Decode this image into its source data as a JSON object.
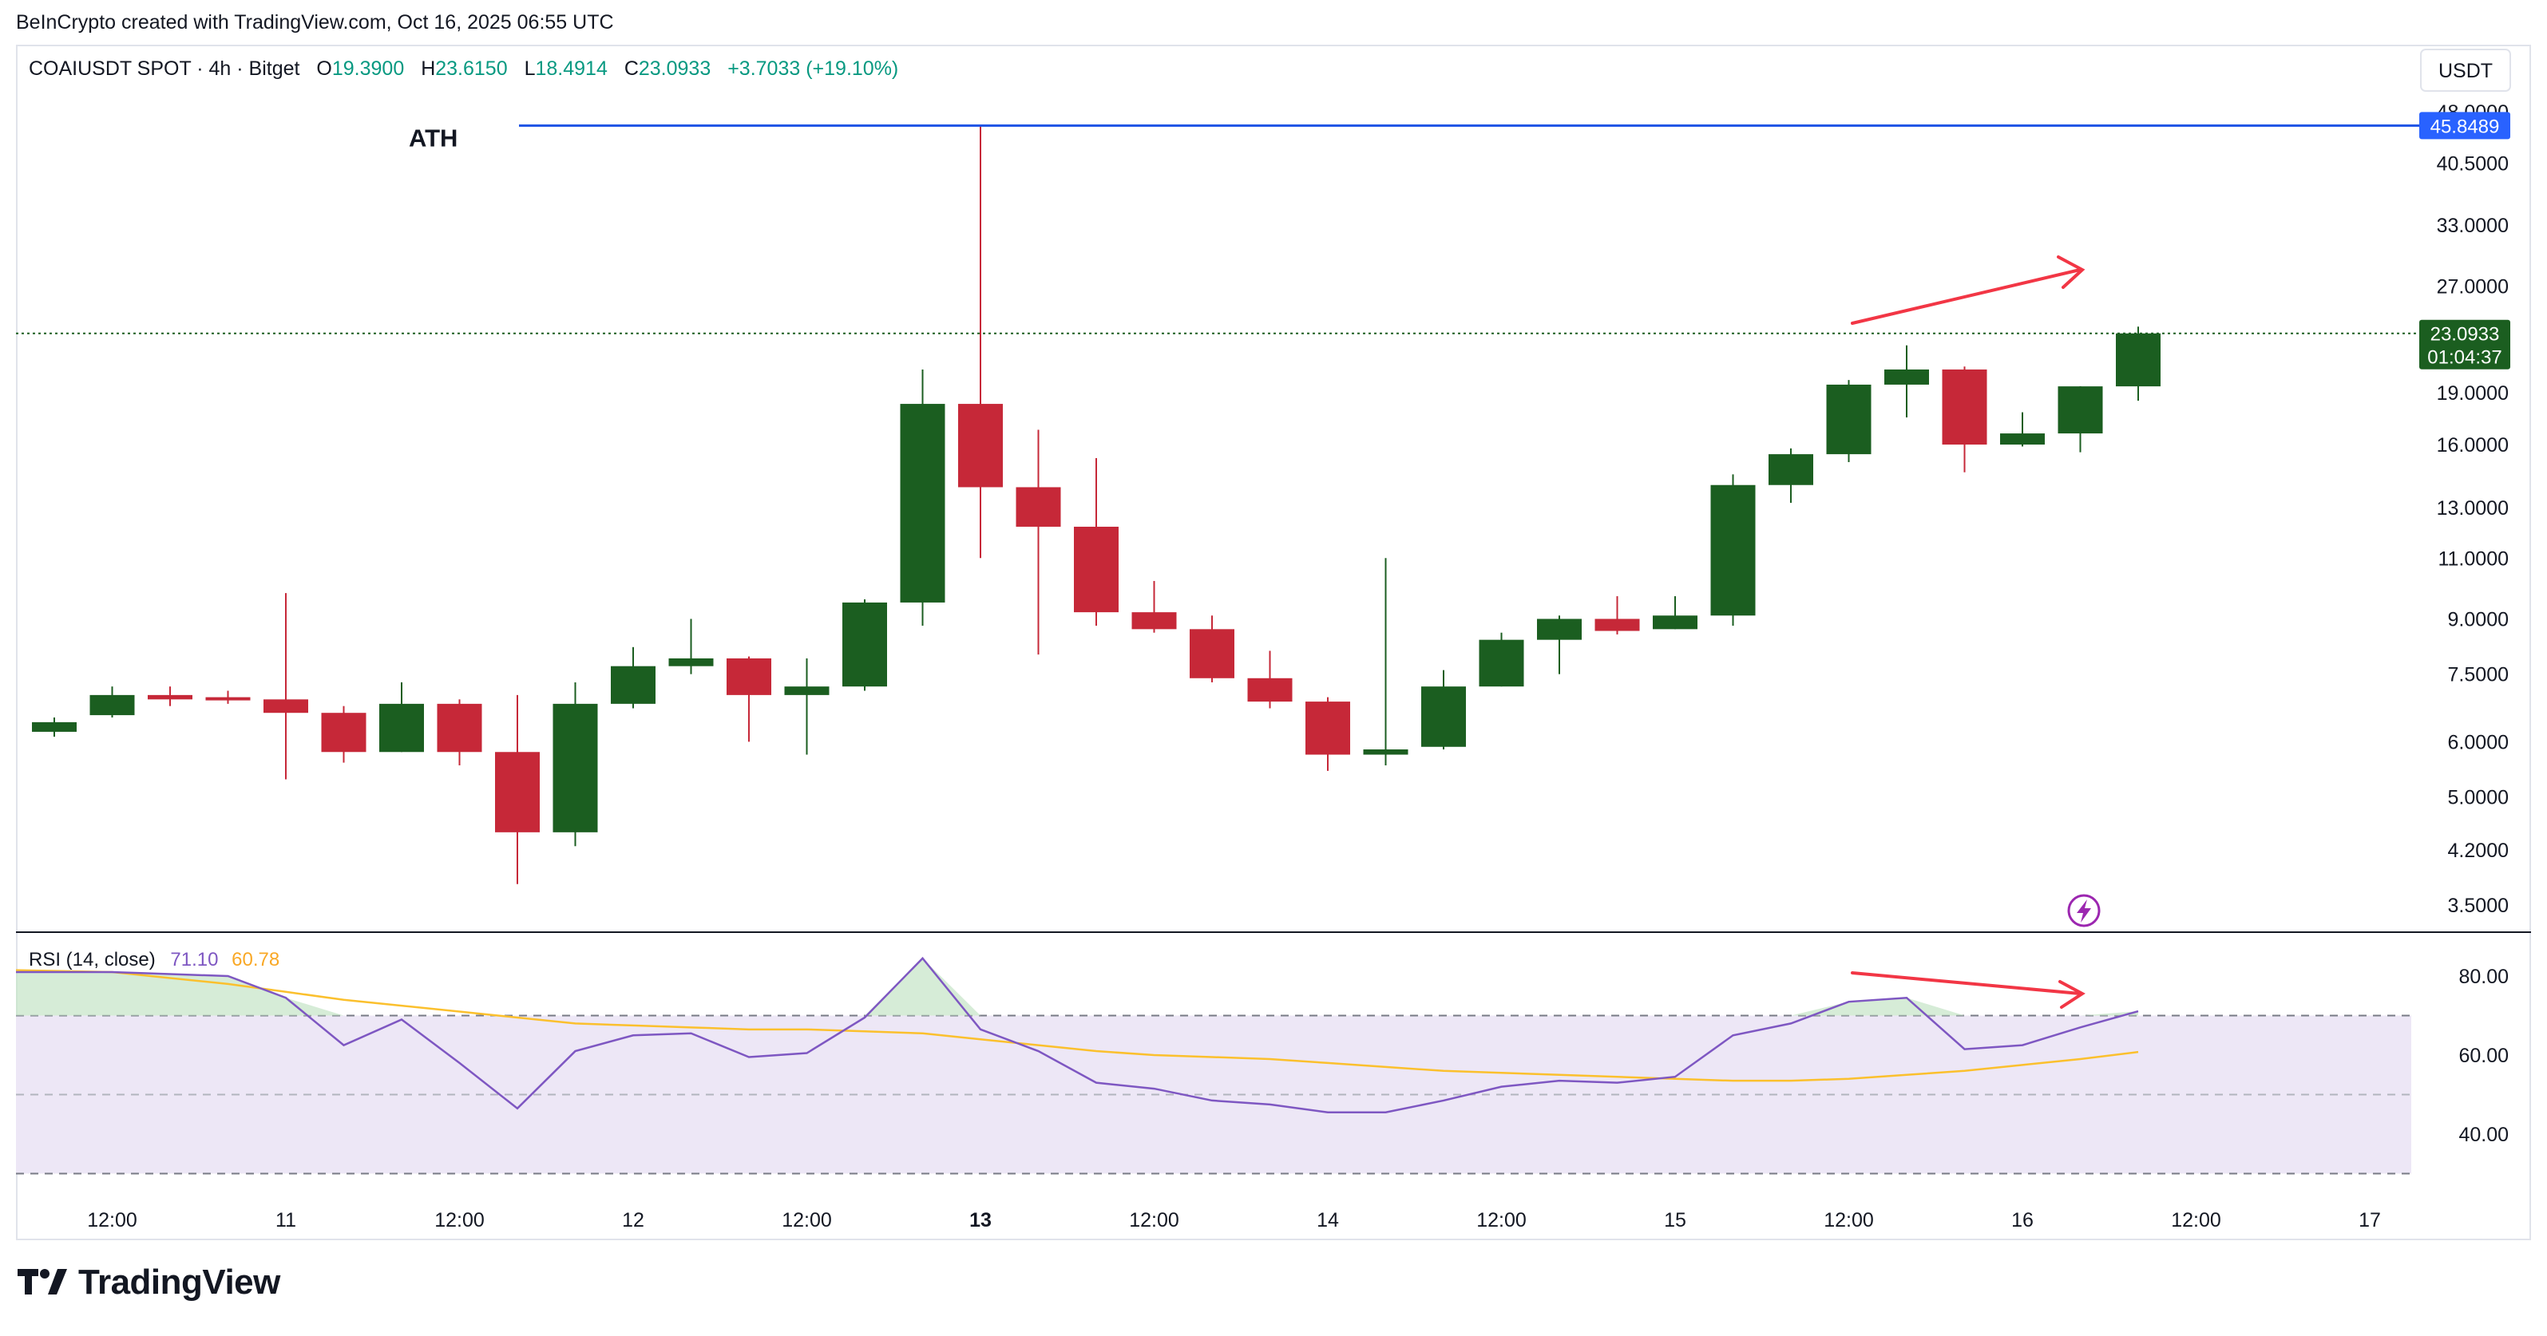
{
  "credit": "BeInCrypto created with TradingView.com, Oct 16, 2025 06:55 UTC",
  "header": {
    "symbol": "COAIUSDT SPOT · 4h · Bitget",
    "o_label": "O",
    "o_value": "19.3900",
    "h_label": "H",
    "h_value": "23.6150",
    "l_label": "L",
    "l_value": "18.4914",
    "c_label": "C",
    "c_value": "23.0933",
    "change": "+3.7033 (+19.10%)"
  },
  "currency_button": "USDT",
  "ath_label": "ATH",
  "ath_price": "45.8489",
  "last_price": "23.0933",
  "countdown": "01:04:37",
  "rsi_header": {
    "name": "RSI (14, close)",
    "rsi_value": "71.10",
    "ma_value": "60.78"
  },
  "logo_text": "TradingView",
  "colors": {
    "up": "#1b5e20",
    "down": "#c62838",
    "rsi": "#7e57c2",
    "rsi_ma": "#fbc02d",
    "ath_line": "#2962ff",
    "arrow": "#f23645",
    "band_fill": "#ede7f6"
  },
  "chart_data": [
    {
      "type": "candlestick",
      "title": "COAIUSDT SPOT · 4h · Bitget",
      "y_scale": "log",
      "y_ticks": [
        3.5,
        4.2,
        5.0,
        6.0,
        7.5,
        9.0,
        11.0,
        13.0,
        16.0,
        19.0,
        27.0,
        33.0,
        40.5,
        48.0
      ],
      "y_tick_labels": [
        "3.5000",
        "4.2000",
        "5.0000",
        "6.0000",
        "7.5000",
        "9.0000",
        "11.0000",
        "13.0000",
        "16.0000",
        "19.0000",
        "27.0000",
        "33.0000",
        "40.5000",
        "48.0000"
      ],
      "x_tick_labels": [
        "12:00",
        "11",
        "12:00",
        "12",
        "12:00",
        "13",
        "12:00",
        "14",
        "12:00",
        "15",
        "12:00",
        "16",
        "12:00",
        "17"
      ],
      "ath": 45.8489,
      "last_price": 23.0933,
      "candles": [
        {
          "o": 6.2,
          "h": 6.5,
          "l": 6.1,
          "c": 6.4
        },
        {
          "o": 6.55,
          "h": 7.2,
          "l": 6.5,
          "c": 7.0
        },
        {
          "o": 7.0,
          "h": 7.2,
          "l": 6.75,
          "c": 6.9
        },
        {
          "o": 6.95,
          "h": 7.1,
          "l": 6.8,
          "c": 6.9
        },
        {
          "o": 6.9,
          "h": 9.8,
          "l": 5.3,
          "c": 6.6
        },
        {
          "o": 6.6,
          "h": 6.75,
          "l": 5.6,
          "c": 5.8
        },
        {
          "o": 5.8,
          "h": 7.3,
          "l": 5.8,
          "c": 6.8
        },
        {
          "o": 6.8,
          "h": 6.9,
          "l": 5.55,
          "c": 5.8
        },
        {
          "o": 5.8,
          "h": 7.0,
          "l": 3.75,
          "c": 4.45
        },
        {
          "o": 4.45,
          "h": 7.3,
          "l": 4.25,
          "c": 6.8
        },
        {
          "o": 6.8,
          "h": 8.2,
          "l": 6.7,
          "c": 7.7
        },
        {
          "o": 7.7,
          "h": 9.0,
          "l": 7.5,
          "c": 7.9
        },
        {
          "o": 7.9,
          "h": 7.95,
          "l": 6.0,
          "c": 7.0
        },
        {
          "o": 7.0,
          "h": 7.9,
          "l": 5.75,
          "c": 7.2
        },
        {
          "o": 7.2,
          "h": 9.6,
          "l": 7.1,
          "c": 9.5
        },
        {
          "o": 9.5,
          "h": 20.5,
          "l": 8.8,
          "c": 18.3
        },
        {
          "o": 18.3,
          "h": 45.85,
          "l": 11.0,
          "c": 13.9
        },
        {
          "o": 13.9,
          "h": 16.8,
          "l": 8.0,
          "c": 12.2
        },
        {
          "o": 12.2,
          "h": 15.3,
          "l": 8.8,
          "c": 9.2
        },
        {
          "o": 9.2,
          "h": 10.2,
          "l": 8.6,
          "c": 8.7
        },
        {
          "o": 8.7,
          "h": 9.1,
          "l": 7.3,
          "c": 7.4
        },
        {
          "o": 7.4,
          "h": 8.1,
          "l": 6.7,
          "c": 6.85
        },
        {
          "o": 6.85,
          "h": 6.95,
          "l": 5.45,
          "c": 5.75
        },
        {
          "o": 5.75,
          "h": 11.0,
          "l": 5.55,
          "c": 5.85
        },
        {
          "o": 5.9,
          "h": 7.6,
          "l": 5.85,
          "c": 7.2
        },
        {
          "o": 7.2,
          "h": 8.6,
          "l": 7.2,
          "c": 8.4
        },
        {
          "o": 8.4,
          "h": 9.1,
          "l": 7.5,
          "c": 9.0
        },
        {
          "o": 9.0,
          "h": 9.7,
          "l": 8.55,
          "c": 8.65
        },
        {
          "o": 8.7,
          "h": 9.7,
          "l": 8.7,
          "c": 9.1
        },
        {
          "o": 9.1,
          "h": 14.5,
          "l": 8.8,
          "c": 14.0
        },
        {
          "o": 14.0,
          "h": 15.8,
          "l": 13.2,
          "c": 15.5
        },
        {
          "o": 15.5,
          "h": 19.8,
          "l": 15.1,
          "c": 19.5
        },
        {
          "o": 19.5,
          "h": 22.2,
          "l": 17.5,
          "c": 20.5
        },
        {
          "o": 20.5,
          "h": 20.7,
          "l": 14.6,
          "c": 16.0
        },
        {
          "o": 16.0,
          "h": 17.8,
          "l": 15.9,
          "c": 16.6
        },
        {
          "o": 16.6,
          "h": 19.4,
          "l": 15.6,
          "c": 19.39
        },
        {
          "o": 19.39,
          "h": 23.615,
          "l": 18.4914,
          "c": 23.0933
        }
      ]
    },
    {
      "type": "line",
      "title": "RSI (14, close)",
      "y_ticks": [
        40,
        60,
        80
      ],
      "y_tick_labels": [
        "40.00",
        "60.00",
        "80.00"
      ],
      "bands": [
        30,
        50,
        70
      ],
      "series": [
        {
          "name": "RSI",
          "values": [
            81,
            81,
            80.5,
            80,
            74.5,
            62.5,
            69,
            58,
            46.5,
            61,
            65,
            65.5,
            59.5,
            60.5,
            69.5,
            84.5,
            66.5,
            61,
            53,
            51.5,
            48.5,
            47.5,
            45.5,
            45.5,
            48.5,
            52,
            53.5,
            53,
            54.5,
            65,
            68,
            73.5,
            74.5,
            61.5,
            62.5,
            67,
            71.1
          ]
        },
        {
          "name": "MA",
          "values": [
            81.5,
            81,
            79.5,
            78,
            76,
            74,
            72.5,
            71,
            69.5,
            68,
            67.5,
            67,
            66.5,
            66.5,
            66,
            65.5,
            64,
            62.5,
            61,
            60,
            59.5,
            59,
            58,
            57,
            56,
            55.5,
            55,
            54.5,
            54,
            53.5,
            53.5,
            54,
            55,
            56,
            57.5,
            59,
            60.78
          ]
        }
      ]
    }
  ]
}
